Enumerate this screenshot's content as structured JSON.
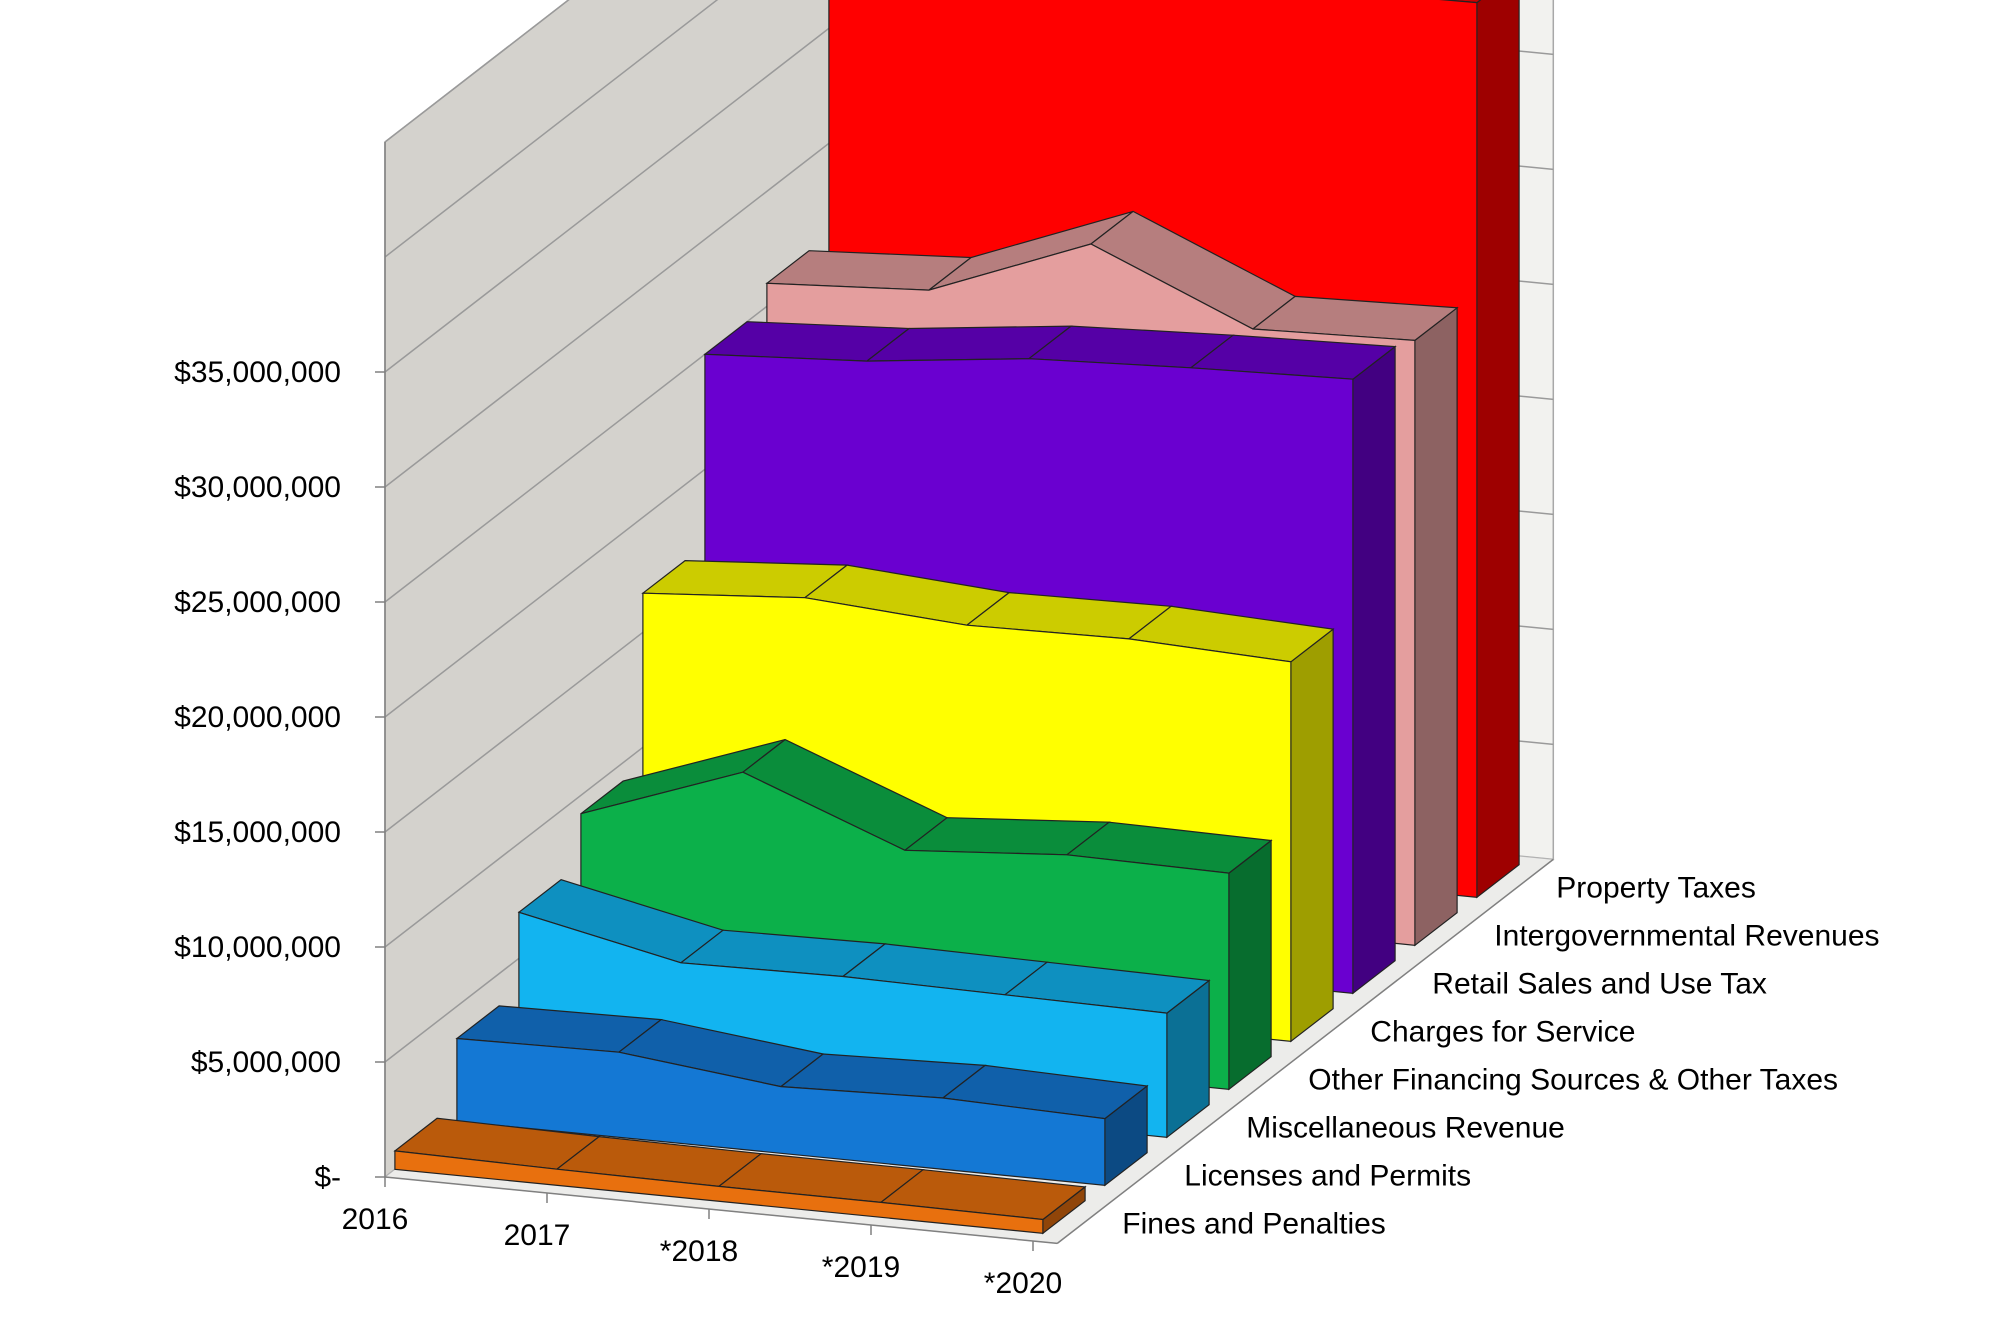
{
  "chart_data": {
    "type": "area",
    "style": "3d-ribbon",
    "categories": [
      "2016",
      "2017",
      "*2018",
      "*2019",
      "*2020"
    ],
    "ylim": [
      0,
      45000000
    ],
    "yticks": [
      {
        "value": 0,
        "label": "$-"
      },
      {
        "value": 5000000,
        "label": "$5,000,000"
      },
      {
        "value": 10000000,
        "label": "$10,000,000"
      },
      {
        "value": 15000000,
        "label": "$15,000,000"
      },
      {
        "value": 20000000,
        "label": "$20,000,000"
      },
      {
        "value": 25000000,
        "label": "$25,000,000"
      },
      {
        "value": 30000000,
        "label": "$30,000,000"
      },
      {
        "value": 35000000,
        "label": "$35,000,000"
      }
    ],
    "grid": true,
    "series": [
      {
        "name": "Fines and Penalties",
        "color": "#E8700E",
        "values": [
          800000,
          700000,
          650000,
          650000,
          600000
        ]
      },
      {
        "name": "Licenses and Permits",
        "color": "#1478D4",
        "values": [
          3600000,
          3700000,
          2900000,
          3100000,
          2900000
        ]
      },
      {
        "name": "Miscellaneous Revenue",
        "color": "#12B4F0",
        "values": [
          7000000,
          5500000,
          5600000,
          5500000,
          5400000
        ]
      },
      {
        "name": "Other Financing Sources & Other Taxes",
        "color": "#0CB04A",
        "values": [
          9200000,
          11700000,
          9000000,
          9500000,
          9400000
        ]
      },
      {
        "name": "Charges for Service",
        "color": "#FFFF00",
        "values": [
          16700000,
          17200000,
          16700000,
          16800000,
          16500000
        ]
      },
      {
        "name": "Retail Sales and Use Tax",
        "color": "#6A00D0",
        "values": [
          25000000,
          25400000,
          26200000,
          26500000,
          26700000
        ]
      },
      {
        "name": "Intergovernmental Revenues",
        "color": "#E49E9E",
        "values": [
          26000000,
          26400000,
          29100000,
          26100000,
          26300000
        ]
      },
      {
        "name": "Property Taxes",
        "color": "#FF0000",
        "values": [
          38500000,
          38900000,
          38900000,
          38800000,
          38900000
        ]
      }
    ]
  }
}
